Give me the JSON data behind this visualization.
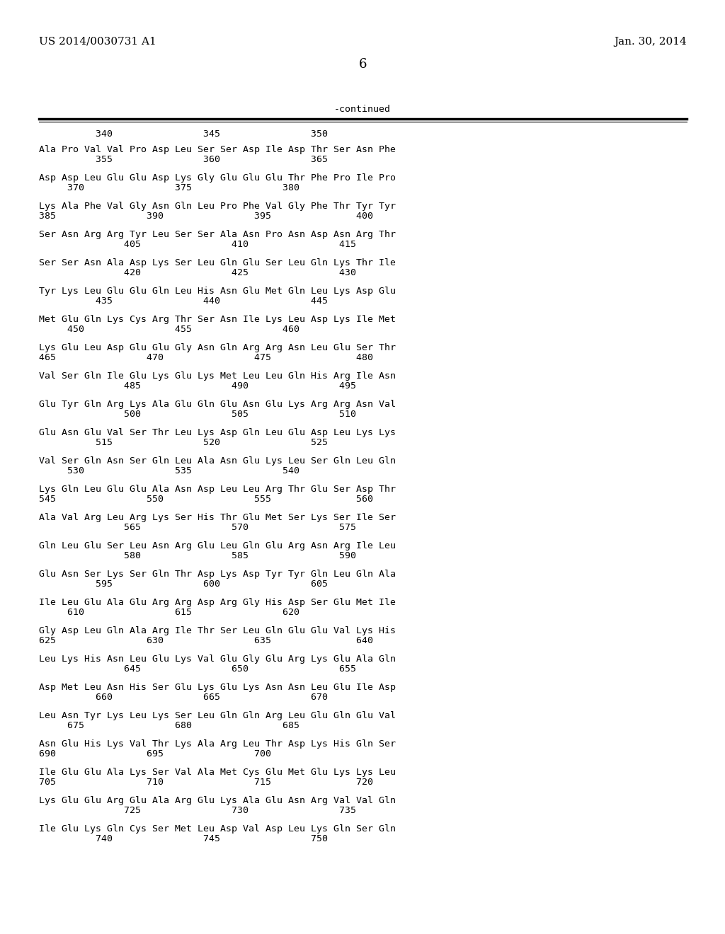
{
  "header_left": "US 2014/0030731 A1",
  "header_right": "Jan. 30, 2014",
  "page_number": "6",
  "continued_label": "-continued",
  "background_color": "#ffffff",
  "text_color": "#000000",
  "blocks": [
    {
      "seq": "Ala Pro Val Val Pro Asp Leu Ser Ser Asp Ile Asp Thr Ser Asn Phe",
      "num": "          355                360                365"
    },
    {
      "seq": "Asp Asp Leu Glu Glu Asp Lys Gly Glu Glu Glu Thr Phe Pro Ile Pro",
      "num": "     370                375                380"
    },
    {
      "seq": "Lys Ala Phe Val Gly Asn Gln Leu Pro Phe Val Gly Phe Thr Tyr Tyr",
      "num": "385                390                395               400"
    },
    {
      "seq": "Ser Asn Arg Arg Tyr Leu Ser Ser Ala Asn Pro Asn Asp Asn Arg Thr",
      "num": "               405                410                415"
    },
    {
      "seq": "Ser Ser Asn Ala Asp Lys Ser Leu Gln Glu Ser Leu Gln Lys Thr Ile",
      "num": "               420                425                430"
    },
    {
      "seq": "Tyr Lys Leu Glu Glu Gln Leu His Asn Glu Met Gln Leu Lys Asp Glu",
      "num": "          435                440                445"
    },
    {
      "seq": "Met Glu Gln Lys Cys Arg Thr Ser Asn Ile Lys Leu Asp Lys Ile Met",
      "num": "     450                455                460"
    },
    {
      "seq": "Lys Glu Leu Asp Glu Glu Gly Asn Gln Arg Arg Asn Leu Glu Ser Thr",
      "num": "465                470                475               480"
    },
    {
      "seq": "Val Ser Gln Ile Glu Lys Glu Lys Met Leu Leu Gln His Arg Ile Asn",
      "num": "               485                490                495"
    },
    {
      "seq": "Glu Tyr Gln Arg Lys Ala Glu Gln Glu Asn Glu Lys Arg Arg Asn Val",
      "num": "               500                505                510"
    },
    {
      "seq": "Glu Asn Glu Val Ser Thr Leu Lys Asp Gln Leu Glu Asp Leu Lys Lys",
      "num": "          515                520                525"
    },
    {
      "seq": "Val Ser Gln Asn Ser Gln Leu Ala Asn Glu Lys Leu Ser Gln Leu Gln",
      "num": "     530                535                540"
    },
    {
      "seq": "Lys Gln Leu Glu Glu Ala Asn Asp Leu Leu Arg Thr Glu Ser Asp Thr",
      "num": "545                550                555               560"
    },
    {
      "seq": "Ala Val Arg Leu Arg Lys Ser His Thr Glu Met Ser Lys Ser Ile Ser",
      "num": "               565                570                575"
    },
    {
      "seq": "Gln Leu Glu Ser Leu Asn Arg Glu Leu Gln Glu Arg Asn Arg Ile Leu",
      "num": "               580                585                590"
    },
    {
      "seq": "Glu Asn Ser Lys Ser Gln Thr Asp Lys Asp Tyr Tyr Gln Leu Gln Ala",
      "num": "          595                600                605"
    },
    {
      "seq": "Ile Leu Glu Ala Glu Arg Arg Asp Arg Gly His Asp Ser Glu Met Ile",
      "num": "     610                615                620"
    },
    {
      "seq": "Gly Asp Leu Gln Ala Arg Ile Thr Ser Leu Gln Glu Glu Val Lys His",
      "num": "625                630                635               640"
    },
    {
      "seq": "Leu Lys His Asn Leu Glu Lys Val Glu Gly Glu Arg Lys Glu Ala Gln",
      "num": "               645                650                655"
    },
    {
      "seq": "Asp Met Leu Asn His Ser Glu Lys Glu Lys Asn Asn Leu Glu Ile Asp",
      "num": "          660                665                670"
    },
    {
      "seq": "Leu Asn Tyr Lys Leu Lys Ser Leu Gln Gln Arg Leu Glu Gln Glu Val",
      "num": "     675                680                685"
    },
    {
      "seq": "Asn Glu His Lys Val Thr Lys Ala Arg Leu Thr Asp Lys His Gln Ser",
      "num": "690                695                700"
    },
    {
      "seq": "Ile Glu Glu Ala Lys Ser Val Ala Met Cys Glu Met Glu Lys Lys Leu",
      "num": "705                710                715               720"
    },
    {
      "seq": "Lys Glu Glu Arg Glu Ala Arg Glu Lys Ala Glu Asn Arg Val Val Gln",
      "num": "               725                730                735"
    },
    {
      "seq": "Ile Glu Lys Gln Cys Ser Met Leu Asp Val Asp Leu Lys Gln Ser Gln",
      "num": "          740                745                750"
    }
  ],
  "top_numbers": "          340                345                350"
}
